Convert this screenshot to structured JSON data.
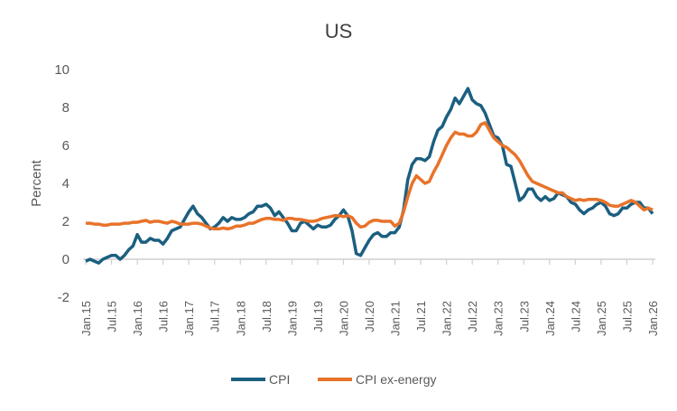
{
  "chart_data": {
    "type": "line",
    "title": "US",
    "xlabel": "",
    "ylabel": "Percent",
    "ylim": [
      -2,
      10
    ],
    "yticks": [
      -2,
      0,
      2,
      4,
      6,
      8,
      10
    ],
    "grid": false,
    "legend": "bottom",
    "x_start": "Jan.15",
    "x_frequency": "monthly",
    "xtick_labels": [
      "Jan.15",
      "Jul.15",
      "Jan.16",
      "Jul.16",
      "Jan.17",
      "Jul.17",
      "Jan.18",
      "Jul.18",
      "Jan.19",
      "Jul.19",
      "Jan.20",
      "Jul.20",
      "Jan.21",
      "Jul.21",
      "Jan.22",
      "Jul.22",
      "Jan.23",
      "Jul.23",
      "Jan.24",
      "Jul.24",
      "Jan.25",
      "Jul.25",
      "Jan.26"
    ],
    "series": [
      {
        "name": "CPI",
        "color": "#1b5f80",
        "values": [
          -0.1,
          0.0,
          -0.1,
          -0.2,
          0.0,
          0.1,
          0.2,
          0.2,
          0.0,
          0.2,
          0.5,
          0.7,
          1.3,
          0.9,
          0.9,
          1.1,
          1.0,
          1.0,
          0.8,
          1.1,
          1.5,
          1.6,
          1.7,
          2.1,
          2.5,
          2.8,
          2.4,
          2.2,
          1.9,
          1.6,
          1.7,
          1.9,
          2.2,
          2.0,
          2.2,
          2.1,
          2.1,
          2.2,
          2.4,
          2.5,
          2.8,
          2.8,
          2.9,
          2.7,
          2.3,
          2.5,
          2.2,
          1.9,
          1.5,
          1.5,
          1.9,
          2.0,
          1.8,
          1.6,
          1.8,
          1.7,
          1.7,
          1.8,
          2.1,
          2.3,
          2.6,
          2.3,
          1.5,
          0.3,
          0.2,
          0.6,
          1.0,
          1.3,
          1.4,
          1.2,
          1.2,
          1.4,
          1.4,
          1.7,
          2.6,
          4.2,
          5.0,
          5.3,
          5.3,
          5.2,
          5.4,
          6.2,
          6.8,
          7.0,
          7.5,
          7.9,
          8.5,
          8.2,
          8.6,
          9.0,
          8.4,
          8.2,
          8.1,
          7.7,
          7.1,
          6.5,
          6.4,
          6.0,
          5.0,
          4.9,
          4.0,
          3.1,
          3.3,
          3.7,
          3.7,
          3.3,
          3.1,
          3.3,
          3.1,
          3.2,
          3.5,
          3.4,
          3.3,
          3.0,
          2.9,
          2.6,
          2.4,
          2.6,
          2.7,
          2.9,
          3.0,
          2.8,
          2.4,
          2.3,
          2.4,
          2.7,
          2.7,
          2.9,
          3.0,
          3.0,
          2.7,
          2.7,
          2.4
        ]
      },
      {
        "name": "CPI ex-energy",
        "color": "#e8732a",
        "values": [
          1.9,
          1.9,
          1.85,
          1.85,
          1.8,
          1.8,
          1.85,
          1.85,
          1.85,
          1.9,
          1.9,
          1.95,
          1.95,
          2.0,
          2.05,
          1.95,
          2.0,
          2.0,
          1.95,
          1.9,
          2.0,
          1.95,
          1.85,
          1.85,
          1.85,
          1.9,
          1.9,
          1.85,
          1.75,
          1.65,
          1.6,
          1.6,
          1.65,
          1.6,
          1.65,
          1.75,
          1.75,
          1.8,
          1.9,
          1.9,
          2.0,
          2.1,
          2.15,
          2.15,
          2.1,
          2.1,
          2.05,
          2.15,
          2.15,
          2.1,
          2.1,
          2.05,
          2.0,
          2.0,
          2.05,
          2.15,
          2.2,
          2.25,
          2.3,
          2.3,
          2.25,
          2.3,
          2.2,
          1.9,
          1.7,
          1.75,
          1.95,
          2.05,
          2.05,
          2.0,
          2.0,
          2.0,
          1.75,
          1.9,
          2.5,
          3.3,
          4.0,
          4.4,
          4.2,
          4.0,
          4.1,
          4.6,
          5.0,
          5.5,
          6.0,
          6.4,
          6.7,
          6.6,
          6.6,
          6.5,
          6.5,
          6.7,
          7.1,
          7.2,
          6.8,
          6.4,
          6.2,
          6.0,
          5.9,
          5.7,
          5.5,
          5.2,
          4.8,
          4.4,
          4.1,
          4.0,
          3.9,
          3.8,
          3.7,
          3.6,
          3.5,
          3.5,
          3.3,
          3.2,
          3.1,
          3.15,
          3.1,
          3.15,
          3.15,
          3.15,
          3.1,
          3.0,
          2.85,
          2.8,
          2.8,
          2.9,
          3.0,
          3.1,
          3.0,
          2.8,
          2.6,
          2.7,
          2.6
        ]
      }
    ]
  }
}
